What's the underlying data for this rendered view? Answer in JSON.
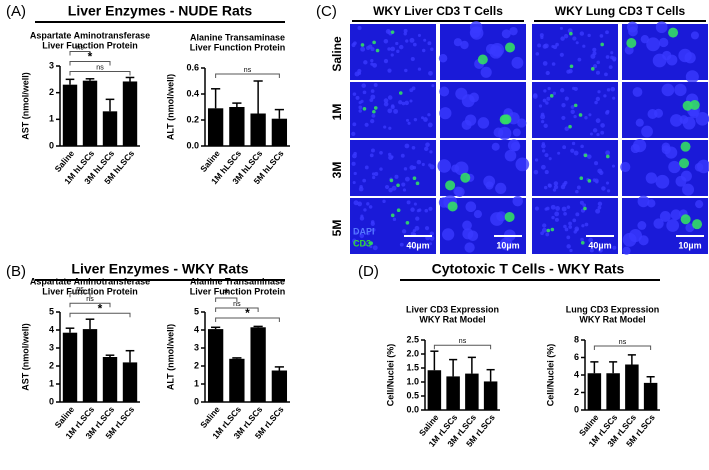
{
  "panels": [
    {
      "label": "(A)",
      "heading": "Liver Enzymes - NUDE Rats"
    },
    {
      "label": "(B)",
      "heading": "Liver Enzymes - WKY Rats"
    },
    {
      "label": "(C)"
    },
    {
      "label": "(D)",
      "heading": "Cytotoxic T Cells - WKY Rats"
    }
  ],
  "image_panel": {
    "columns": [
      "WKY Liver CD3 T Cells",
      "WKY Lung CD3 T Cells"
    ],
    "rows": [
      "Saline",
      "1M",
      "3M",
      "5M"
    ],
    "channels": [
      "DAPI",
      "CD3"
    ],
    "scale_bars": [
      "40µm",
      "10µm",
      "40µm",
      "10µm"
    ]
  },
  "chart_data": [
    {
      "type": "bar",
      "title": [
        "Aspartate Aminotransferase",
        "Liver Function Protein"
      ],
      "ylabel": "AST (nmol/well)",
      "categories": [
        "Saline",
        "1M hLSCs",
        "3M hLSCs",
        "5M hLSCs"
      ],
      "values": [
        2.3,
        2.45,
        1.3,
        2.42
      ],
      "errors": [
        0.2,
        0.07,
        0.45,
        0.15
      ],
      "color": "#000000",
      "ylim": [
        0,
        3
      ],
      "yticks": [
        0,
        1,
        2,
        3
      ],
      "annotations": [
        {
          "text": "ns",
          "from": "Saline",
          "to": "1M hLSCs"
        },
        {
          "text": "*",
          "from": "Saline",
          "to": "3M hLSCs"
        },
        {
          "text": "ns",
          "from": "Saline",
          "to": "5M hLSCs"
        }
      ]
    },
    {
      "type": "bar",
      "title": [
        "Alanine Transaminase",
        "Liver Function  Protein"
      ],
      "ylabel": "ALT (nmol/well)",
      "categories": [
        "Saline",
        "1M hLSCs",
        "3M hLSCs",
        "5M hLSCs"
      ],
      "values": [
        0.29,
        0.3,
        0.25,
        0.21
      ],
      "errors": [
        0.15,
        0.03,
        0.25,
        0.07
      ],
      "color": "#000000",
      "ylim": [
        0,
        0.6
      ],
      "yticks": [
        {
          "value": 0,
          "label": "0.0"
        },
        0.2,
        0.4,
        0.6
      ],
      "annotations": [
        {
          "text": "ns",
          "from": "Saline",
          "to": "5M hLSCs"
        }
      ]
    },
    {
      "type": "bar",
      "title": [
        "Aspartate Aminotransferase",
        "Liver Function Protein"
      ],
      "ylabel": "AST (nmol/well)",
      "categories": [
        "Saline",
        "1M rLSCs",
        "3M rLSCs",
        "5M rLSCs"
      ],
      "values": [
        3.85,
        4.05,
        2.5,
        2.2
      ],
      "errors": [
        0.25,
        0.55,
        0.1,
        0.65
      ],
      "color": "#000000",
      "ylim": [
        0,
        5
      ],
      "yticks": [
        0,
        1,
        2,
        3,
        4,
        5
      ],
      "annotations": [
        {
          "text": "ns",
          "from": "Saline",
          "to": "1M rLSCs"
        },
        {
          "text": "ns",
          "from": "Saline",
          "to": "3M rLSCs"
        },
        {
          "text": "*",
          "from": "Saline",
          "to": "5M rLSCs"
        }
      ]
    },
    {
      "type": "bar",
      "title": [
        "Alanine Transaminase",
        "Liver Function Protein"
      ],
      "ylabel": "ALT (nmol/well)",
      "categories": [
        "Saline",
        "1M rLSCs",
        "3M rLSCs",
        "5M rLSCs"
      ],
      "values": [
        4.05,
        2.4,
        4.15,
        1.75
      ],
      "errors": [
        0.1,
        0.05,
        0.05,
        0.2
      ],
      "color": "#000000",
      "ylim": [
        0,
        5
      ],
      "yticks": [
        0,
        1,
        2,
        3,
        4,
        5
      ],
      "annotations": [
        {
          "text": "*",
          "from": "Saline",
          "to": "1M rLSCs"
        },
        {
          "text": "ns",
          "from": "Saline",
          "to": "3M rLSCs"
        },
        {
          "text": "*",
          "from": "Saline",
          "to": "5M rLSCs"
        }
      ]
    },
    {
      "type": "bar",
      "title": [
        "Liver CD3 Expression",
        "WKY Rat  Model"
      ],
      "ylabel": "Cell/Nuclei (%)",
      "categories": [
        "Saline",
        "1M rLSCs",
        "3M rLSCs",
        "5M rLSCs"
      ],
      "values": [
        1.42,
        1.2,
        1.3,
        1.02
      ],
      "errors": [
        0.68,
        0.6,
        0.58,
        0.42
      ],
      "color": "#000000",
      "ylim": [
        0,
        2.5
      ],
      "yticks": [
        {
          "value": 0,
          "label": "0.0"
        },
        0.5,
        {
          "value": 1,
          "label": "1.0"
        },
        1.5,
        {
          "value": 2,
          "label": "2.0"
        },
        2.5
      ],
      "annotations": [
        {
          "text": "ns",
          "from": "Saline",
          "to": "5M rLSCs"
        }
      ]
    },
    {
      "type": "bar",
      "title": [
        "Lung CD3 Expression",
        "WKY Rat Model"
      ],
      "ylabel": "Cell/Nuclei (%)",
      "categories": [
        "Saline",
        "1M rLSCs",
        "3M rLSCs",
        "5M rLSCs"
      ],
      "values": [
        4.2,
        4.2,
        5.2,
        3.1
      ],
      "errors": [
        1.3,
        1.3,
        1.1,
        0.7
      ],
      "color": "#000000",
      "ylim": [
        0,
        8
      ],
      "yticks": [
        0,
        2,
        4,
        6,
        8
      ],
      "annotations": [
        {
          "text": "ns",
          "from": "Saline",
          "to": "5M rLSCs"
        }
      ]
    }
  ]
}
